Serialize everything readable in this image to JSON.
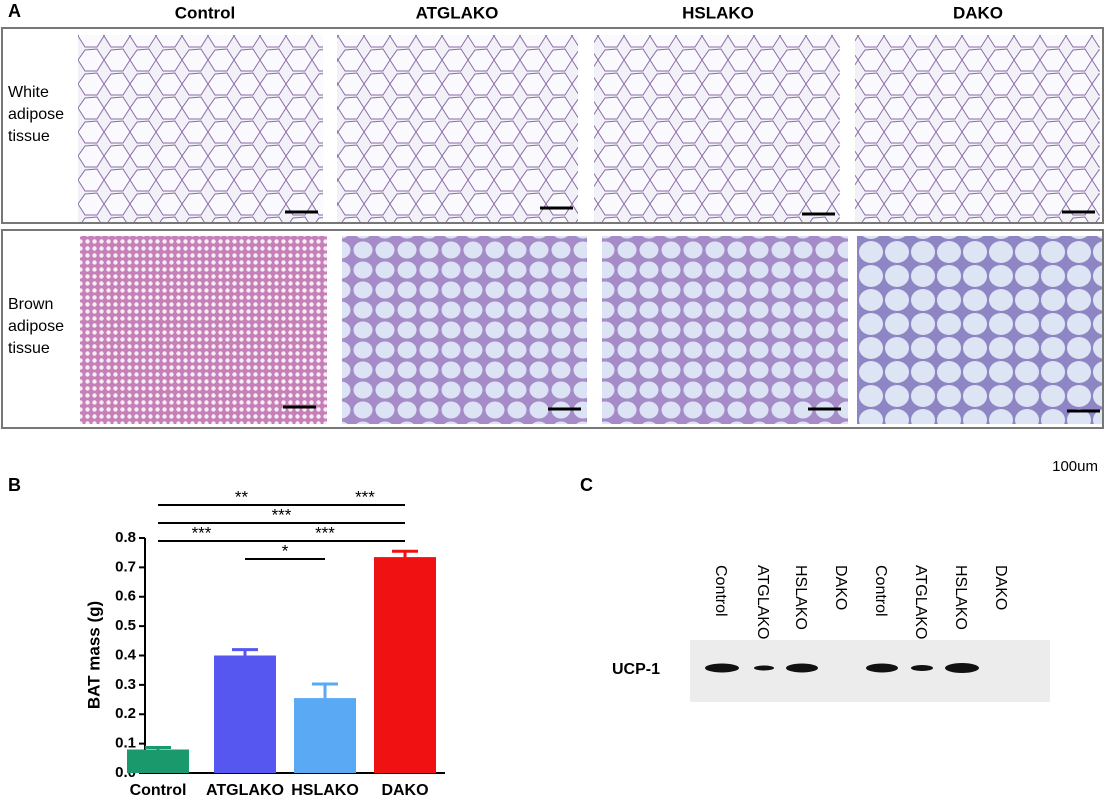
{
  "panel_a": {
    "label": "A",
    "columns": [
      "Control",
      "ATGLAKO",
      "HSLAKO",
      "DAKO"
    ],
    "rows": [
      "White adipose tissue",
      "Brown adipose tissue"
    ],
    "scale_label": "100um"
  },
  "chart_data": {
    "type": "bar",
    "label": "B",
    "y_label": "BAT mass (g)",
    "categories": [
      "Control",
      "ATGLAKO",
      "HSLAKO",
      "DAKO"
    ],
    "values": [
      0.08,
      0.4,
      0.255,
      0.735
    ],
    "errors": [
      0.007,
      0.02,
      0.048,
      0.02
    ],
    "colors": [
      "#1a9a6c",
      "#5656f0",
      "#5aa9f5",
      "#f01212"
    ],
    "ylim": [
      0,
      0.8
    ],
    "yticks": [
      {
        "value": 0,
        "label": "0.0"
      },
      0.1,
      0.2,
      0.3,
      0.4,
      0.5,
      0.6,
      0.7,
      0.8
    ],
    "comparisons": [
      {
        "from": "Control",
        "to": "HSLAKO",
        "label": "**"
      },
      {
        "from": "HSLAKO",
        "to": "DAKO",
        "label": "***"
      },
      {
        "from": "Control",
        "to": "DAKO",
        "label": "***"
      },
      {
        "from": "Control",
        "to": "ATGLAKO",
        "label": "***"
      },
      {
        "from": "ATGLAKO",
        "to": "DAKO",
        "label": "***"
      },
      {
        "from": "ATGLAKO",
        "to": "HSLAKO",
        "label": "*"
      }
    ]
  },
  "panel_c": {
    "label": "C",
    "lanes": [
      "Control",
      "ATGLAKO",
      "HSLAKO",
      "DAKO",
      "Control",
      "ATGLAKO",
      "HSLAKO",
      "DAKO"
    ],
    "band_label": "UCP-1"
  }
}
